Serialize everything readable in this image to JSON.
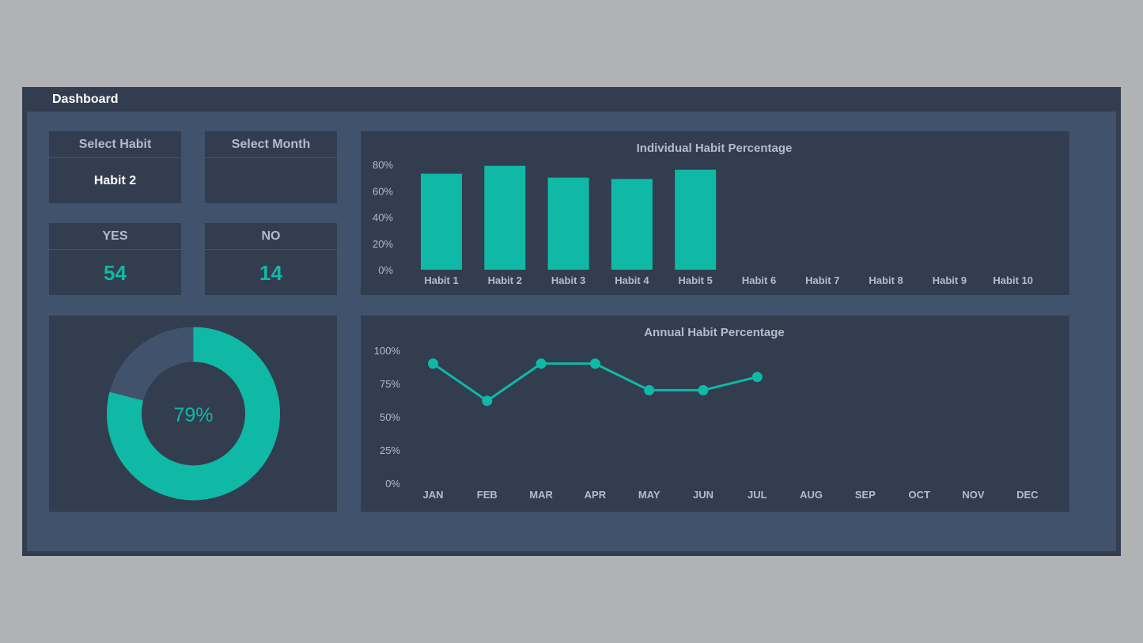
{
  "window": {
    "title": "Dashboard"
  },
  "filters": {
    "habit": {
      "label": "Select Habit",
      "value": "Habit 2"
    },
    "month": {
      "label": "Select Month",
      "value": ""
    }
  },
  "stats": {
    "yes": {
      "label": "YES",
      "value": "54"
    },
    "no": {
      "label": "NO",
      "value": "14"
    }
  },
  "donut": {
    "percent_label": "79%",
    "fraction": 0.79
  },
  "colors": {
    "accent": "#0fb9a6",
    "panel": "#323d50",
    "background": "#41526d",
    "muted": "#b4bccb"
  },
  "chart_data": [
    {
      "type": "bar",
      "title": "Individual Habit Percentage",
      "categories": [
        "Habit 1",
        "Habit 2",
        "Habit 3",
        "Habit 4",
        "Habit 5",
        "Habit 6",
        "Habit 7",
        "Habit 8",
        "Habit 9",
        "Habit 10"
      ],
      "values": [
        73,
        79,
        70,
        69,
        76,
        null,
        null,
        null,
        null,
        null
      ],
      "ylim": [
        0,
        80
      ],
      "yticks": [
        "0%",
        "20%",
        "40%",
        "60%",
        "80%"
      ],
      "grid": false
    },
    {
      "type": "line",
      "title": "Annual Habit Percentage",
      "categories": [
        "JAN",
        "FEB",
        "MAR",
        "APR",
        "MAY",
        "JUN",
        "JUL",
        "AUG",
        "SEP",
        "OCT",
        "NOV",
        "DEC"
      ],
      "values": [
        90,
        62,
        90,
        90,
        70,
        70,
        80,
        null,
        null,
        null,
        null,
        null
      ],
      "ylim": [
        0,
        100
      ],
      "yticks": [
        "0%",
        "25%",
        "50%",
        "75%",
        "100%"
      ],
      "grid": false
    }
  ]
}
